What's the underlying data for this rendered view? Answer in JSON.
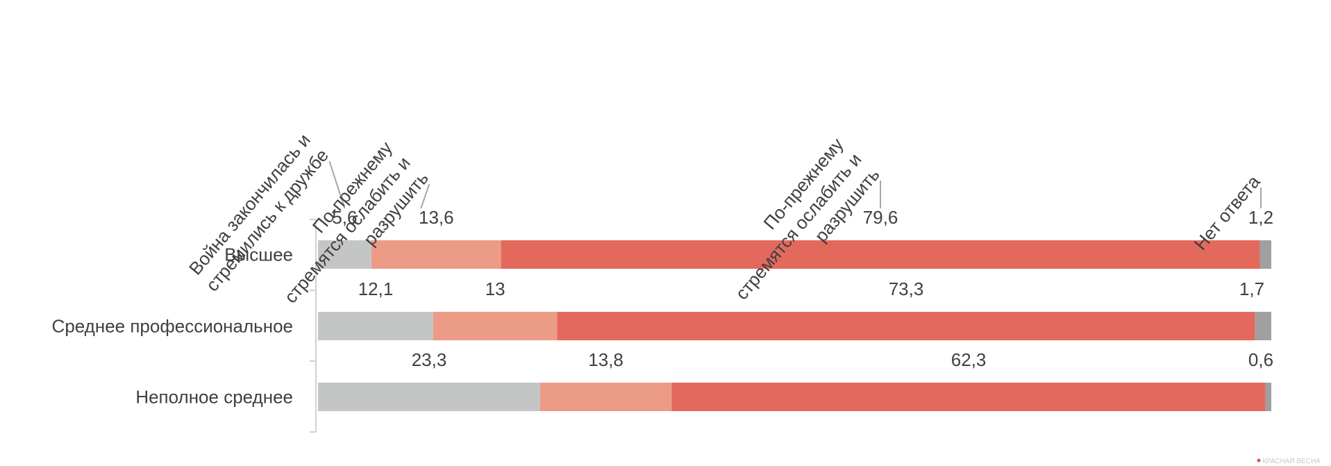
{
  "chart_data": {
    "type": "bar",
    "orientation": "horizontal",
    "stacked": true,
    "normalized": true,
    "categories": [
      "Высшее",
      "Среднее профессиональное",
      "Неполное среднее"
    ],
    "series": [
      {
        "name": "Война закончилась и стремились к дружбе",
        "color": "#c4c6c5",
        "values": [
          5.6,
          12.1,
          23.3
        ],
        "labels": [
          "5,6",
          "12,1",
          "23,3"
        ]
      },
      {
        "name": "По-прежнему стремятся ослабить и разрушить",
        "color": "#ec9b87",
        "values": [
          13.6,
          13.0,
          13.8
        ],
        "labels": [
          "13,6",
          "13",
          "13,8"
        ]
      },
      {
        "name": "По-прежнему стремятся ослабить и разрушить",
        "color": "#e4695d",
        "values": [
          79.6,
          73.3,
          62.3
        ],
        "labels": [
          "79,6",
          "73,3",
          "62,3"
        ]
      },
      {
        "name": "Нет ответа",
        "color": "#a0a0a0",
        "values": [
          1.2,
          1.7,
          0.6
        ],
        "labels": [
          "1,2",
          "1,7",
          "0,6"
        ]
      }
    ],
    "legend_callouts": [
      {
        "series": 0,
        "lines": [
          "Война закончилась и",
          "стремились к дружбе"
        ]
      },
      {
        "series": 1,
        "lines": [
          "По-прежнему",
          "стремятся ослабить и",
          "разрушить"
        ]
      },
      {
        "series": 2,
        "lines": [
          "По-прежнему",
          "стремятся ослабить и",
          "разрушить"
        ]
      },
      {
        "series": 3,
        "lines": [
          "Нет ответа"
        ]
      }
    ],
    "legend_placement": "top, rotated labels with leader lines",
    "xlim": [
      0,
      100
    ],
    "grid": false,
    "watermark": "КРАСНАЯ ВЕСНА"
  }
}
